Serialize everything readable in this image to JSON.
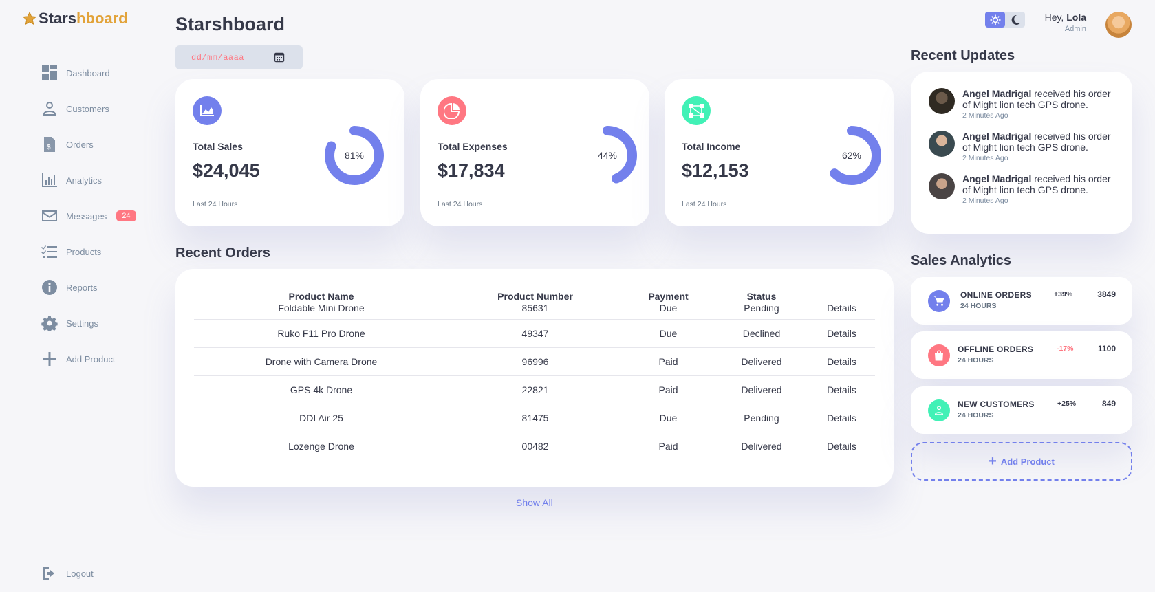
{
  "brand": {
    "part1": "Stars",
    "part2": "h",
    "part3": "board",
    "color_accent": "#e2a33a"
  },
  "sidebar": {
    "items": [
      {
        "label": "Dashboard",
        "icon": "grid-icon"
      },
      {
        "label": "Customers",
        "icon": "person-icon"
      },
      {
        "label": "Orders",
        "icon": "receipt-icon"
      },
      {
        "label": "Analytics",
        "icon": "bar-chart-icon"
      },
      {
        "label": "Messages",
        "icon": "mail-icon",
        "badge": "24"
      },
      {
        "label": "Products",
        "icon": "checklist-icon"
      },
      {
        "label": "Reports",
        "icon": "info-icon"
      },
      {
        "label": "Settings",
        "icon": "gear-icon"
      },
      {
        "label": "Add Product",
        "icon": "plus-icon"
      }
    ],
    "logout": "Logout"
  },
  "header": {
    "title": "Starshboard",
    "date_placeholder": "dd/mm/aaaa",
    "greeting": "Hey,",
    "user_name": "Lola",
    "user_role": "Admin",
    "theme": "light"
  },
  "stats": [
    {
      "label": "Total Sales",
      "value": "$24,045",
      "percent": "81%",
      "fraction": 0.81,
      "footer": "Last 24 Hours",
      "icon": "area-chart-icon",
      "color": "#7380ec"
    },
    {
      "label": "Total Expenses",
      "value": "$17,834",
      "percent": "44%",
      "fraction": 0.44,
      "footer": "Last 24 Hours",
      "icon": "pie-chart-icon",
      "color": "#ff7782"
    },
    {
      "label": "Total Income",
      "value": "$12,153",
      "percent": "62%",
      "fraction": 0.62,
      "footer": "Last 24 Hours",
      "icon": "network-icon",
      "color": "#41f1b6"
    }
  ],
  "orders": {
    "heading": "Recent Orders",
    "columns": [
      "Product Name",
      "Product Number",
      "Payment",
      "Status"
    ],
    "rows": [
      {
        "name": "Foldable Mini Drone",
        "number": "85631",
        "payment": "Due",
        "status": "Pending",
        "action": "Details"
      },
      {
        "name": "Ruko F11 Pro Drone",
        "number": "49347",
        "payment": "Due",
        "status": "Declined",
        "action": "Details"
      },
      {
        "name": "Drone with Camera Drone",
        "number": "96996",
        "payment": "Paid",
        "status": "Delivered",
        "action": "Details"
      },
      {
        "name": "GPS 4k Drone",
        "number": "22821",
        "payment": "Paid",
        "status": "Delivered",
        "action": "Details"
      },
      {
        "name": "DDI Air 25",
        "number": "81475",
        "payment": "Due",
        "status": "Pending",
        "action": "Details"
      },
      {
        "name": "Lozenge Drone",
        "number": "00482",
        "payment": "Paid",
        "status": "Delivered",
        "action": "Details"
      }
    ],
    "show_all": "Show All"
  },
  "updates": {
    "heading": "Recent Updates",
    "items": [
      {
        "name": "Angel Madrigal",
        "text": " received his order of Might lion tech GPS drone.",
        "time": "2 Minutes Ago"
      },
      {
        "name": "Angel Madrigal",
        "text": " received his order of Might lion tech GPS drone.",
        "time": "2 Minutes Ago"
      },
      {
        "name": "Angel Madrigal",
        "text": " received his order of Might lion tech GPS drone.",
        "time": "2 Minutes Ago"
      }
    ]
  },
  "sales_analytics": {
    "heading": "Sales Analytics",
    "items": [
      {
        "title": "ONLINE ORDERS",
        "sub": "24 HOURS",
        "change": "+39%",
        "value": "3849",
        "icon": "cart-icon",
        "color": "#7380ec"
      },
      {
        "title": "OFFLINE ORDERS",
        "sub": "24 HOURS",
        "change": "-17%",
        "value": "1100",
        "icon": "bag-icon",
        "color": "#ff7782"
      },
      {
        "title": "NEW CUSTOMERS",
        "sub": "24 HOURS",
        "change": "+25%",
        "value": "849",
        "icon": "person-icon",
        "color": "#41f1b6"
      }
    ],
    "add_product": "Add Product"
  }
}
